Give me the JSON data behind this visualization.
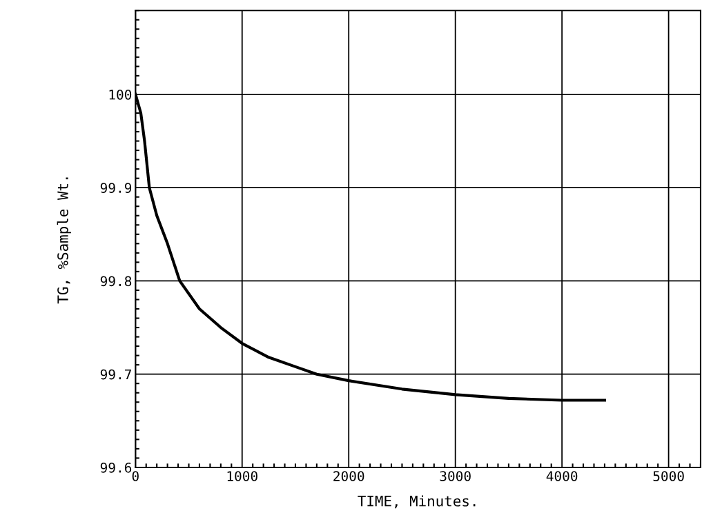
{
  "chart_data": {
    "type": "line",
    "xlabel": "TIME, Minutes.",
    "ylabel": "TG, %Sample Wt.",
    "x": [
      0,
      50,
      85,
      130,
      200,
      300,
      415,
      600,
      800,
      1000,
      1250,
      1500,
      1700,
      2000,
      2500,
      3000,
      3500,
      4000,
      4400
    ],
    "series": [
      {
        "color": "#000000",
        "values": [
          100,
          99.98,
          99.95,
          99.9,
          99.87,
          99.84,
          99.8,
          99.77,
          99.75,
          99.733,
          99.718,
          99.708,
          99.7,
          99.693,
          99.684,
          99.678,
          99.674,
          99.672,
          99.672
        ]
      }
    ],
    "xlim": [
      0,
      5300
    ],
    "ylim": [
      99.6,
      100.09
    ],
    "xticks": [
      0,
      1000,
      2000,
      3000,
      4000,
      5000
    ],
    "yticks": [
      {
        "value": 99.6,
        "label": "99.6"
      },
      {
        "value": 99.7,
        "label": "99.7"
      },
      {
        "value": 99.8,
        "label": "99.8"
      },
      {
        "value": 99.9,
        "label": "99.9"
      },
      {
        "value": 100,
        "label": "100"
      }
    ],
    "grid": true,
    "marker": "none",
    "line_style": "solid"
  }
}
